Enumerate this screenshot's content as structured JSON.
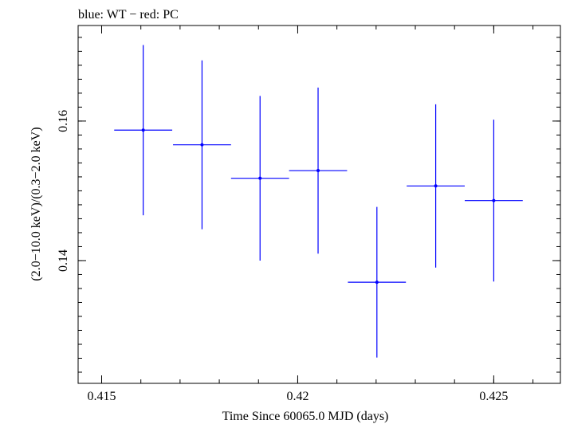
{
  "chart_data": {
    "type": "scatter",
    "title": "blue: WT − red: PC",
    "xlabel": "Time Since 60065.0 MJD (days)",
    "ylabel": "(2.0−10.0 keV)/(0.3−2.0 keV)",
    "xlim": [
      0.4144,
      0.4267
    ],
    "ylim": [
      0.1224,
      0.1737
    ],
    "x_ticks": [
      0.415,
      0.42,
      0.425
    ],
    "x_tick_labels": [
      "0.415",
      "0.42",
      "0.425"
    ],
    "y_ticks": [
      0.14,
      0.16
    ],
    "y_tick_labels": [
      "0.14",
      "0.16"
    ],
    "grid": false,
    "series": [
      {
        "name": "WT",
        "color": "#0000ff",
        "points": [
          {
            "x": 0.41606,
            "y": 0.1587,
            "xerr": 0.00074,
            "yerr_low": 0.0122,
            "yerr_high": 0.0122
          },
          {
            "x": 0.41756,
            "y": 0.1566,
            "xerr": 0.00074,
            "yerr_low": 0.0121,
            "yerr_high": 0.0121
          },
          {
            "x": 0.41904,
            "y": 0.1518,
            "xerr": 0.00074,
            "yerr_low": 0.0118,
            "yerr_high": 0.0118
          },
          {
            "x": 0.42052,
            "y": 0.1529,
            "xerr": 0.00074,
            "yerr_low": 0.0119,
            "yerr_high": 0.0119
          },
          {
            "x": 0.42202,
            "y": 0.1369,
            "xerr": 0.00074,
            "yerr_low": 0.0108,
            "yerr_high": 0.0108
          },
          {
            "x": 0.42352,
            "y": 0.1507,
            "xerr": 0.00074,
            "yerr_low": 0.0117,
            "yerr_high": 0.0117
          },
          {
            "x": 0.425,
            "y": 0.1486,
            "xerr": 0.00074,
            "yerr_low": 0.0116,
            "yerr_high": 0.0116
          }
        ]
      },
      {
        "name": "PC",
        "color": "#ff0000",
        "points": []
      }
    ]
  }
}
